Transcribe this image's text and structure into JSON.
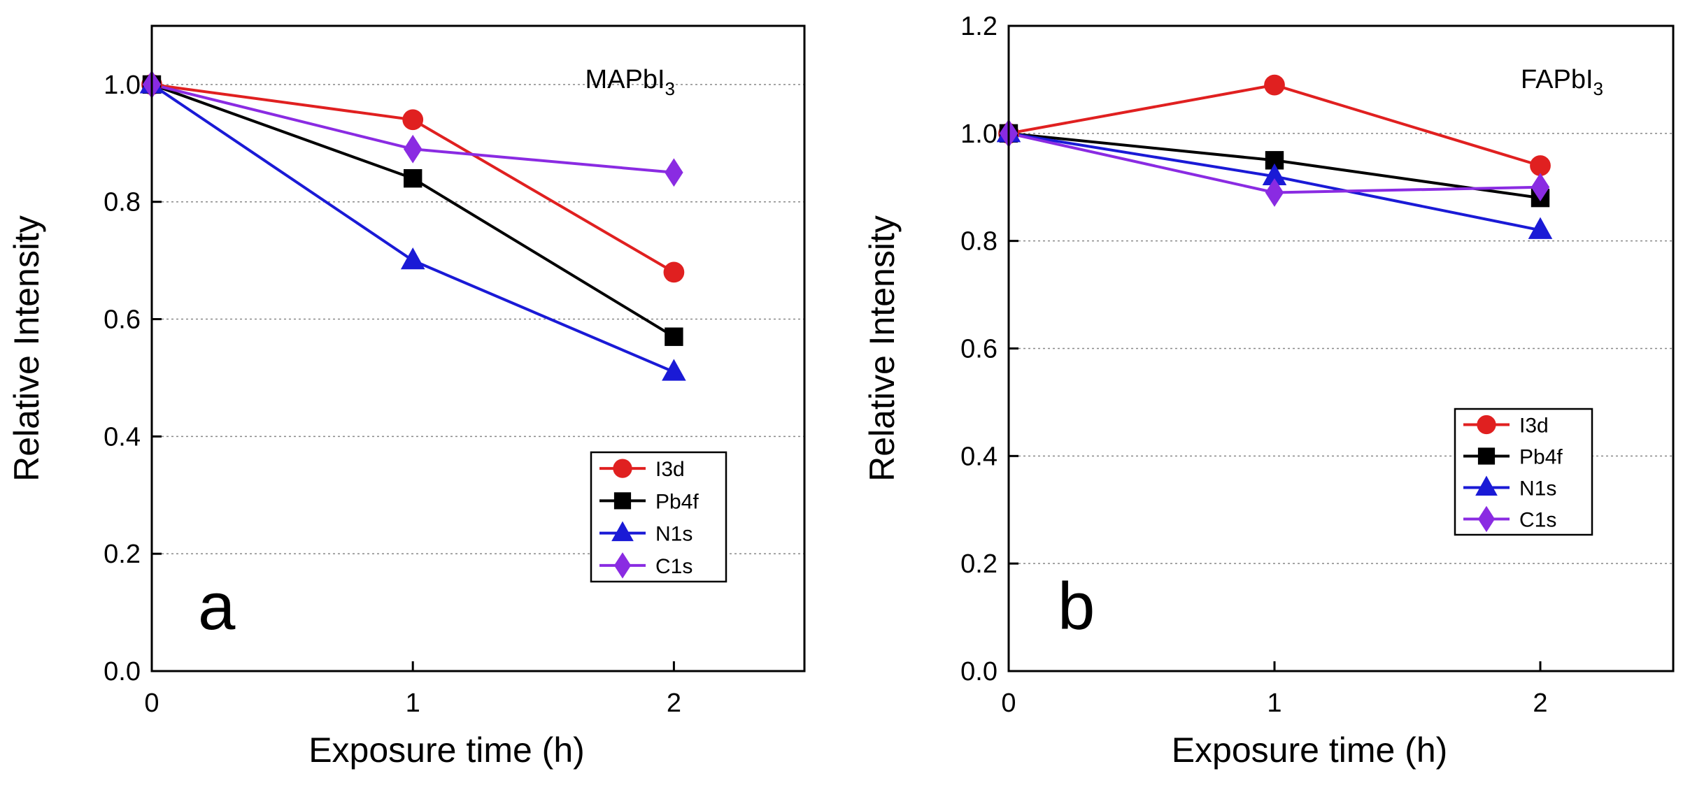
{
  "chart_data": [
    {
      "type": "line",
      "panel_label": "a",
      "title": "MAPbI",
      "title_sub": "3",
      "xlabel": "Exposure time (h)",
      "ylabel": "Relative Intensity",
      "xlim": [
        0,
        2.5
      ],
      "ylim": [
        0,
        1.1
      ],
      "xticks": [
        0,
        1,
        2
      ],
      "xtick_labels": [
        "0",
        "1",
        "2"
      ],
      "yticks": [
        0,
        0.2,
        0.4,
        0.6,
        0.8,
        1.0
      ],
      "ytick_labels": [
        "0.0",
        "0.2",
        "0.4",
        "0.6",
        "0.8",
        "1.0"
      ],
      "grid": "horizontal dotted",
      "legend_position": "bottom-right",
      "x": [
        0,
        1,
        2
      ],
      "series": [
        {
          "name": "I3d",
          "values": [
            1.0,
            0.94,
            0.68
          ],
          "color": "#e02020",
          "marker": "circle"
        },
        {
          "name": "Pb4f",
          "values": [
            1.0,
            0.84,
            0.57
          ],
          "color": "#000000",
          "marker": "square"
        },
        {
          "name": "N1s",
          "values": [
            1.0,
            0.7,
            0.51
          ],
          "color": "#1a1ad6",
          "marker": "triangle"
        },
        {
          "name": "C1s",
          "values": [
            1.0,
            0.89,
            0.85
          ],
          "color": "#8a2be2",
          "marker": "diamond"
        }
      ]
    },
    {
      "type": "line",
      "panel_label": "b",
      "title": "FAPbI",
      "title_sub": "3",
      "xlabel": "Exposure time (h)",
      "ylabel": "Relative Intensity",
      "xlim": [
        0,
        2.5
      ],
      "ylim": [
        0,
        1.2
      ],
      "xticks": [
        0,
        1,
        2
      ],
      "xtick_labels": [
        "0",
        "1",
        "2"
      ],
      "yticks": [
        0,
        0.2,
        0.4,
        0.6,
        0.8,
        1.0,
        1.2
      ],
      "ytick_labels": [
        "0.0",
        "0.2",
        "0.4",
        "0.6",
        "0.8",
        "1.0",
        "1.2"
      ],
      "grid": "horizontal dotted",
      "legend_position": "center-right",
      "x": [
        0,
        1,
        2
      ],
      "series": [
        {
          "name": "I3d",
          "values": [
            1.0,
            1.09,
            0.94
          ],
          "color": "#e02020",
          "marker": "circle"
        },
        {
          "name": "Pb4f",
          "values": [
            1.0,
            0.95,
            0.88
          ],
          "color": "#000000",
          "marker": "square"
        },
        {
          "name": "N1s",
          "values": [
            1.0,
            0.92,
            0.82
          ],
          "color": "#1a1ad6",
          "marker": "triangle"
        },
        {
          "name": "C1s",
          "values": [
            1.0,
            0.89,
            0.9
          ],
          "color": "#8a2be2",
          "marker": "diamond"
        }
      ]
    }
  ]
}
